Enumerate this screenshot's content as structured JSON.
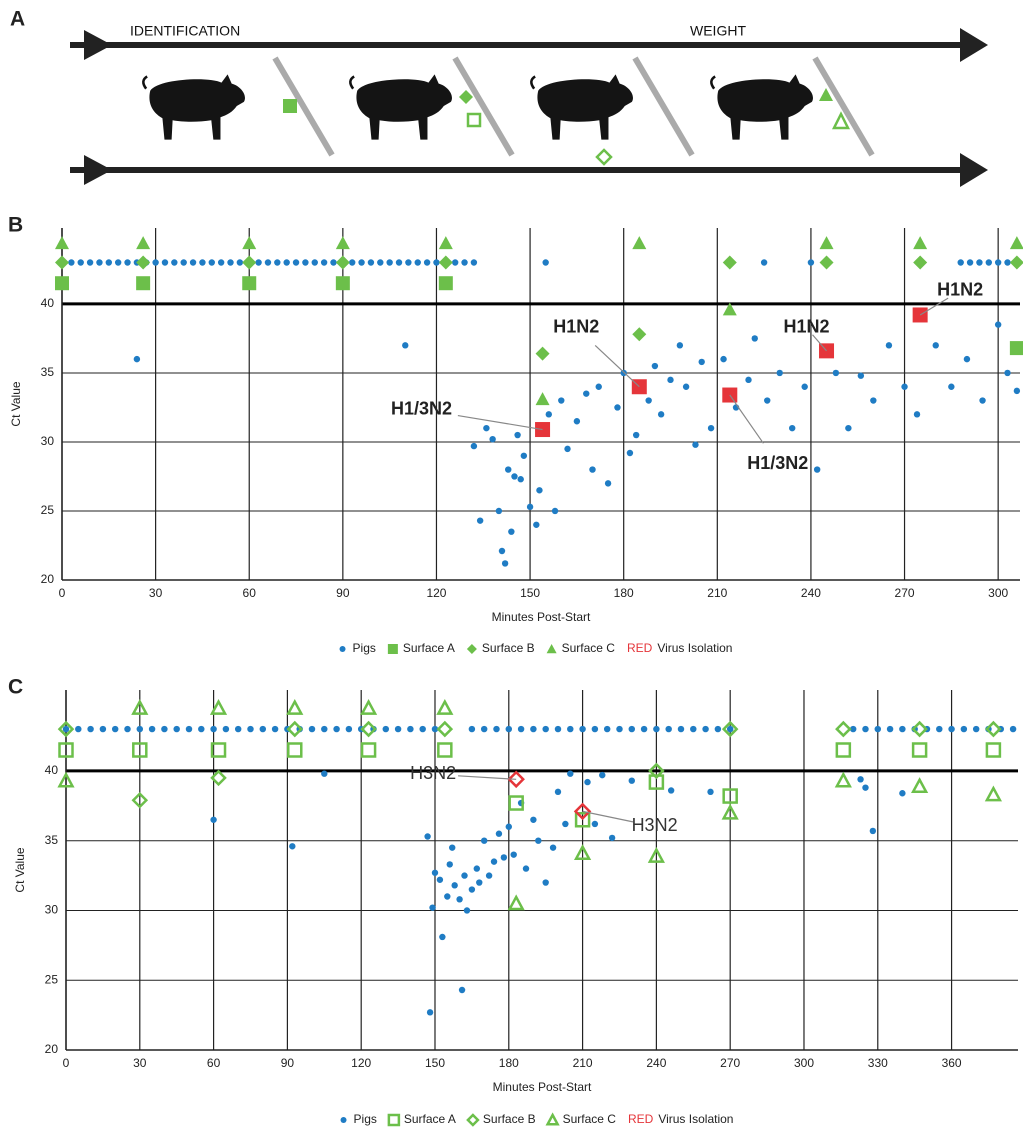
{
  "panel_a": {
    "label": "A",
    "left_label": "IDENTIFICATION",
    "right_label": "WEIGHT"
  },
  "chart_data": [
    {
      "type": "scatter",
      "panel": "B",
      "xlabel": "Minutes Post-Start",
      "ylabel": "Ct Value",
      "xlim": [
        0,
        307
      ],
      "ylim": [
        20,
        45.5
      ],
      "xticks": [
        0,
        30,
        60,
        90,
        120,
        150,
        180,
        210,
        240,
        270,
        300
      ],
      "yticks": [
        20,
        25,
        30,
        35,
        40
      ],
      "grid": true,
      "threshold": 40,
      "series": [
        {
          "name": "Pigs",
          "color": "#1f7cc4",
          "marker": "circle",
          "filled": true,
          "x": [
            0,
            3,
            6,
            9,
            12,
            15,
            18,
            21,
            24,
            27,
            30,
            33,
            36,
            39,
            42,
            45,
            48,
            51,
            54,
            57,
            60,
            63,
            66,
            69,
            72,
            75,
            78,
            81,
            84,
            87,
            90,
            93,
            96,
            99,
            102,
            105,
            108,
            111,
            114,
            117,
            120,
            123,
            126,
            129,
            132,
            155,
            225,
            240,
            288,
            291,
            294,
            297,
            300,
            303,
            306,
            24,
            110,
            132,
            134,
            136,
            138,
            140,
            141,
            142,
            143,
            144,
            145,
            146,
            147,
            148,
            150,
            152,
            153,
            156,
            158,
            160,
            162,
            165,
            168,
            170,
            172,
            175,
            178,
            180,
            182,
            184,
            188,
            190,
            192,
            195,
            198,
            200,
            203,
            205,
            208,
            212,
            216,
            220,
            222,
            226,
            230,
            234,
            238,
            242,
            248,
            252,
            256,
            260,
            265,
            270,
            274,
            280,
            285,
            290,
            295,
            300,
            303,
            306
          ],
          "values": [
            43,
            43,
            43,
            43,
            43,
            43,
            43,
            43,
            43,
            43,
            43,
            43,
            43,
            43,
            43,
            43,
            43,
            43,
            43,
            43,
            43,
            43,
            43,
            43,
            43,
            43,
            43,
            43,
            43,
            43,
            43,
            43,
            43,
            43,
            43,
            43,
            43,
            43,
            43,
            43,
            43,
            43,
            43,
            43,
            43,
            43,
            43,
            43,
            43,
            43,
            43,
            43,
            43,
            43,
            43,
            36,
            37,
            29.7,
            24.3,
            31,
            30.2,
            25,
            22.1,
            21.2,
            28,
            23.5,
            27.5,
            30.5,
            27.3,
            29,
            25.3,
            24,
            26.5,
            32,
            25,
            33,
            29.5,
            31.5,
            33.5,
            28,
            34,
            27,
            32.5,
            35,
            29.2,
            30.5,
            33,
            35.5,
            32,
            34.5,
            37,
            34,
            29.8,
            35.8,
            31,
            36,
            32.5,
            34.5,
            37.5,
            33,
            35,
            31,
            34,
            28,
            35,
            31,
            34.8,
            33,
            37,
            34,
            32,
            37,
            34,
            36,
            33,
            38.5,
            35,
            33.7
          ]
        },
        {
          "name": "Surface A",
          "color": "#6cbf4a",
          "marker": "square",
          "filled": true,
          "x": [
            0,
            26,
            60,
            90,
            123,
            306
          ],
          "values": [
            41.5,
            41.5,
            41.5,
            41.5,
            41.5,
            36.8
          ]
        },
        {
          "name": "Surface B",
          "color": "#6cbf4a",
          "marker": "diamond",
          "filled": true,
          "x": [
            0,
            26,
            60,
            90,
            123,
            154,
            185,
            214,
            245,
            275,
            306
          ],
          "values": [
            43,
            43,
            43,
            43,
            43,
            36.4,
            37.8,
            43,
            43,
            43,
            43
          ]
        },
        {
          "name": "Surface C",
          "color": "#6cbf4a",
          "marker": "triangle",
          "filled": true,
          "x": [
            0,
            26,
            60,
            90,
            123,
            154,
            185,
            214,
            245,
            275,
            306
          ],
          "values": [
            44.4,
            44.4,
            44.4,
            44.4,
            44.4,
            33.1,
            44.4,
            39.6,
            44.4,
            44.4,
            44.4
          ]
        },
        {
          "name": "Virus Isolation",
          "legend_key": "RED",
          "color": "#e5353a",
          "marker": "square",
          "filled": true,
          "x": [
            154,
            185,
            214,
            245,
            275
          ],
          "values": [
            30.9,
            34,
            33.4,
            36.6,
            39.2
          ],
          "point_labels": [
            "H1/3N2",
            "H1N2",
            "H1/3N2",
            "H1N2",
            "H1N2"
          ]
        }
      ]
    },
    {
      "type": "scatter",
      "panel": "C",
      "xlabel": "Minutes Post-Start",
      "ylabel": "Ct Value",
      "xlim": [
        0,
        387
      ],
      "ylim": [
        20,
        45.8
      ],
      "xticks": [
        0,
        30,
        60,
        90,
        120,
        150,
        180,
        210,
        240,
        270,
        300,
        330,
        360
      ],
      "yticks": [
        20,
        25,
        30,
        35,
        40
      ],
      "grid": true,
      "threshold": 40,
      "series": [
        {
          "name": "Pigs",
          "color": "#1f7cc4",
          "marker": "circle",
          "filled": true,
          "x": [
            0,
            5,
            10,
            15,
            20,
            25,
            30,
            35,
            40,
            45,
            50,
            55,
            60,
            65,
            70,
            75,
            80,
            85,
            90,
            95,
            100,
            105,
            110,
            115,
            120,
            125,
            130,
            135,
            140,
            145,
            150,
            165,
            170,
            175,
            180,
            185,
            190,
            195,
            200,
            205,
            210,
            215,
            220,
            225,
            230,
            235,
            240,
            245,
            250,
            255,
            260,
            265,
            270,
            320,
            325,
            330,
            335,
            340,
            345,
            350,
            355,
            360,
            365,
            370,
            375,
            380,
            385,
            60,
            92,
            105,
            147,
            148,
            149,
            150,
            152,
            153,
            155,
            156,
            157,
            158,
            160,
            161,
            162,
            163,
            165,
            167,
            168,
            170,
            172,
            174,
            176,
            178,
            180,
            182,
            185,
            187,
            190,
            192,
            195,
            198,
            200,
            203,
            205,
            212,
            215,
            218,
            222,
            230,
            246,
            262,
            323,
            325,
            328,
            340
          ],
          "values": [
            43,
            43,
            43,
            43,
            43,
            43,
            43,
            43,
            43,
            43,
            43,
            43,
            43,
            43,
            43,
            43,
            43,
            43,
            43,
            43,
            43,
            43,
            43,
            43,
            43,
            43,
            43,
            43,
            43,
            43,
            43,
            43,
            43,
            43,
            43,
            43,
            43,
            43,
            43,
            43,
            43,
            43,
            43,
            43,
            43,
            43,
            43,
            43,
            43,
            43,
            43,
            43,
            43,
            43,
            43,
            43,
            43,
            43,
            43,
            43,
            43,
            43,
            43,
            43,
            43,
            43,
            43,
            36.5,
            34.6,
            39.8,
            35.3,
            22.7,
            30.2,
            32.7,
            32.2,
            28.1,
            31,
            33.3,
            34.5,
            31.8,
            30.8,
            24.3,
            32.5,
            30,
            31.5,
            33,
            32,
            35,
            32.5,
            33.5,
            35.5,
            33.8,
            36,
            34,
            37.7,
            33,
            36.5,
            35,
            32,
            34.5,
            38.5,
            36.2,
            39.8,
            39.2,
            36.2,
            39.7,
            35.2,
            39.3,
            38.6,
            38.5,
            39.4,
            38.8,
            35.7,
            38.4
          ]
        },
        {
          "name": "Surface A",
          "color": "#6cbf4a",
          "marker": "square",
          "filled": false,
          "x": [
            0,
            30,
            62,
            93,
            123,
            154,
            183,
            210,
            240,
            270,
            316,
            347,
            377
          ],
          "values": [
            41.5,
            41.5,
            41.5,
            41.5,
            41.5,
            41.5,
            37.7,
            36.5,
            39.2,
            38.2,
            41.5,
            41.5,
            41.5
          ]
        },
        {
          "name": "Surface B",
          "color": "#6cbf4a",
          "marker": "diamond",
          "filled": false,
          "x": [
            0,
            30,
            62,
            93,
            123,
            154,
            240,
            270,
            316,
            347,
            377
          ],
          "values": [
            43,
            37.9,
            39.5,
            43,
            43,
            43,
            40,
            43,
            43,
            43,
            43
          ]
        },
        {
          "name": "Surface C",
          "color": "#6cbf4a",
          "marker": "triangle",
          "filled": false,
          "x": [
            0,
            30,
            62,
            93,
            123,
            154,
            183,
            210,
            240,
            270,
            316,
            347,
            377
          ],
          "values": [
            39.3,
            44.5,
            44.5,
            44.5,
            44.5,
            44.5,
            30.5,
            34.1,
            33.9,
            37,
            39.3,
            38.9,
            38.3
          ]
        },
        {
          "name": "Virus Isolation",
          "legend_key": "RED",
          "color": "#e5353a",
          "marker": "diamond",
          "filled": false,
          "x": [
            183,
            210
          ],
          "values": [
            39.4,
            37.1
          ],
          "point_labels": [
            "H3N2",
            "H3N2"
          ]
        }
      ]
    }
  ]
}
